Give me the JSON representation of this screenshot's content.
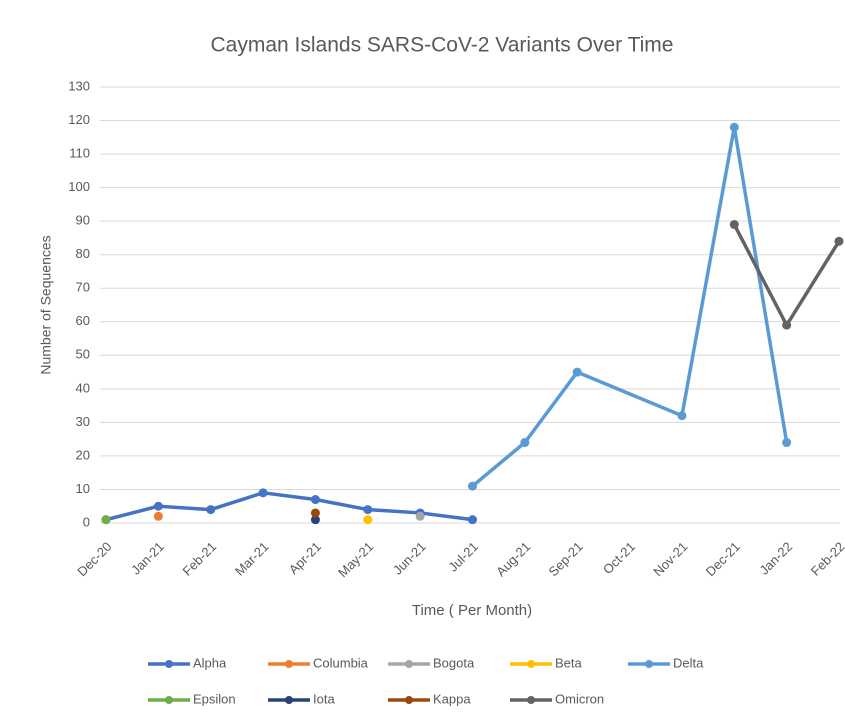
{
  "chart_data": {
    "type": "line",
    "title": "Cayman Islands SARS-CoV-2 Variants Over Time",
    "x_label": "Time ( Per Month)",
    "y_label": "Number of Sequences",
    "categories": [
      "Dec-20",
      "Jan-21",
      "Feb-21",
      "Mar-21",
      "Apr-21",
      "May-21",
      "Jun-21",
      "Jul-21",
      "Aug-21",
      "Sep-21",
      "Oct-21",
      "Nov-21",
      "Dec-21",
      "Jan-22",
      "Feb-22"
    ],
    "ylim": [
      0,
      130
    ],
    "yticks": [
      0,
      10,
      20,
      30,
      40,
      50,
      60,
      70,
      80,
      90,
      100,
      110,
      120,
      130
    ],
    "grid": true,
    "legend": "bottom",
    "connect_gaps": true,
    "series": [
      {
        "name": "Alpha",
        "color": "#4472c4",
        "values": [
          1,
          5,
          4,
          9,
          7,
          4,
          3,
          1,
          null,
          null,
          null,
          null,
          null,
          null,
          null
        ]
      },
      {
        "name": "Columbia",
        "color": "#ed7d31",
        "values": [
          null,
          2,
          null,
          null,
          null,
          null,
          null,
          null,
          null,
          null,
          null,
          null,
          null,
          null,
          null
        ]
      },
      {
        "name": "Bogota",
        "color": "#a5a5a5",
        "values": [
          null,
          null,
          null,
          null,
          null,
          null,
          2,
          null,
          null,
          null,
          null,
          null,
          null,
          null,
          null
        ]
      },
      {
        "name": "Beta",
        "color": "#ffc000",
        "values": [
          null,
          null,
          null,
          null,
          null,
          1,
          null,
          null,
          null,
          null,
          null,
          null,
          null,
          null,
          null
        ]
      },
      {
        "name": "Delta",
        "color": "#5b9bd5",
        "values": [
          null,
          null,
          null,
          null,
          null,
          null,
          null,
          11,
          24,
          45,
          null,
          32,
          118,
          24,
          null
        ]
      },
      {
        "name": "Epsilon",
        "color": "#70ad47",
        "values": [
          1,
          null,
          null,
          null,
          null,
          null,
          null,
          null,
          null,
          null,
          null,
          null,
          null,
          null,
          null
        ]
      },
      {
        "name": "Iota",
        "color": "#264478",
        "values": [
          null,
          null,
          null,
          null,
          1,
          null,
          null,
          null,
          null,
          null,
          null,
          null,
          null,
          null,
          null
        ]
      },
      {
        "name": "Kappa",
        "color": "#9e480e",
        "values": [
          null,
          null,
          null,
          null,
          3,
          null,
          null,
          null,
          null,
          null,
          null,
          null,
          null,
          null,
          null
        ]
      },
      {
        "name": "Omicron",
        "color": "#636363",
        "values": [
          null,
          null,
          null,
          null,
          null,
          null,
          null,
          null,
          null,
          null,
          null,
          null,
          89,
          59,
          84
        ]
      }
    ]
  }
}
